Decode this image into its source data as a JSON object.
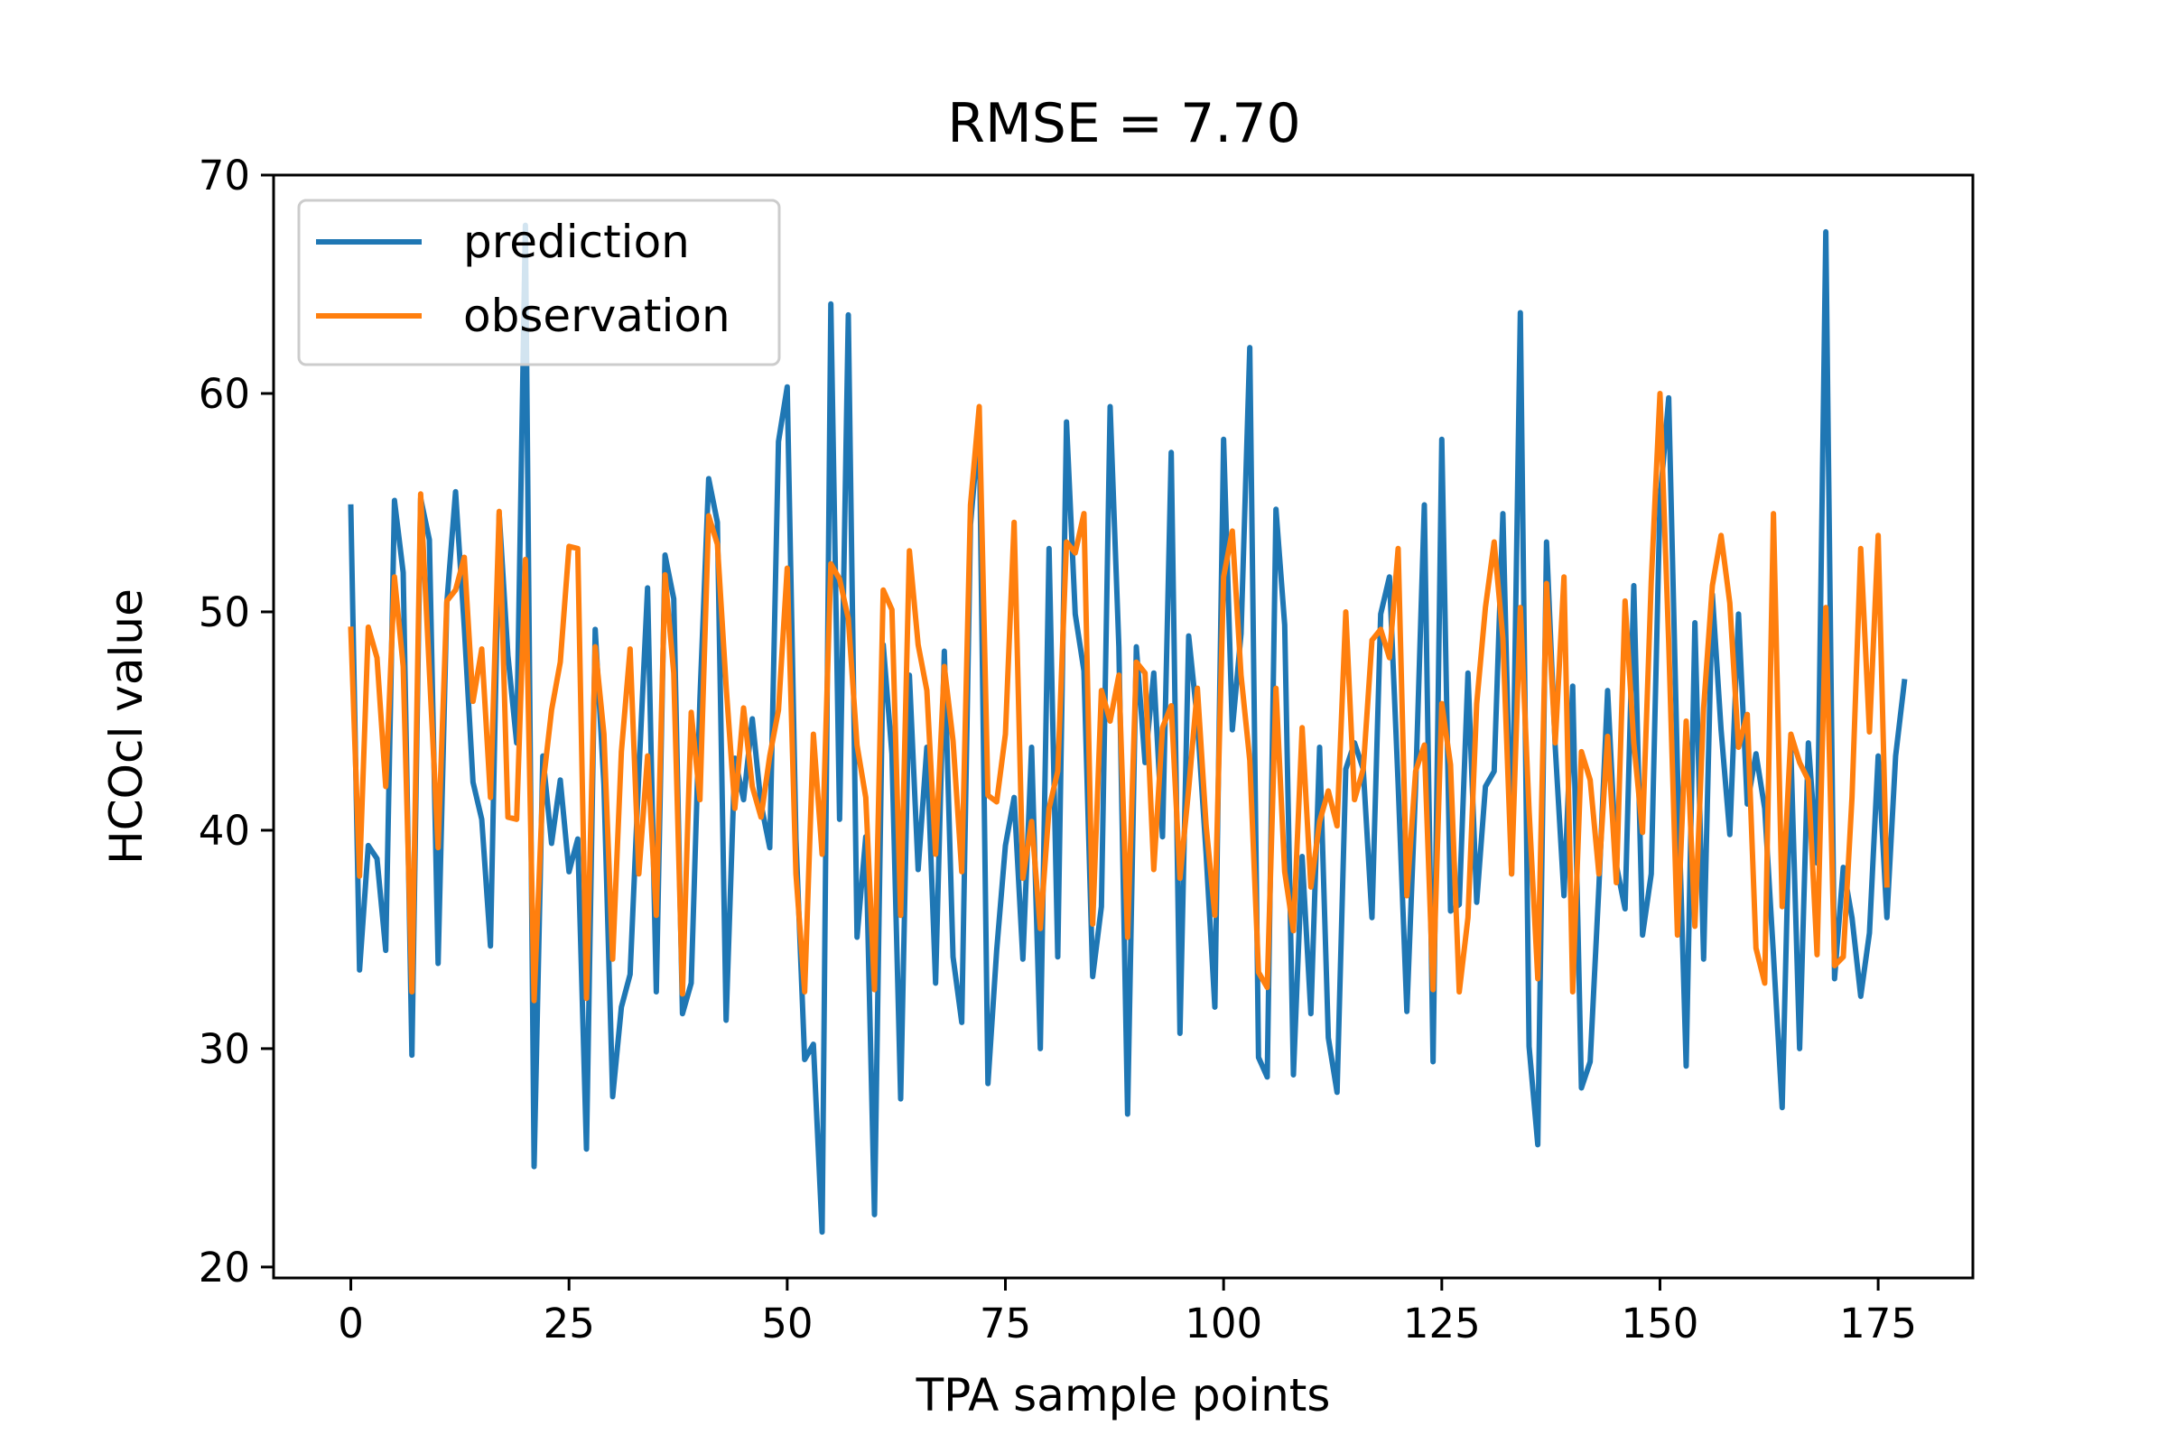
{
  "chart_data": {
    "type": "line",
    "title": "RMSE = 7.70",
    "xlabel": "TPA sample points",
    "ylabel": "HCOcl value",
    "xlim": [
      -8.85,
      185.85
    ],
    "ylim": [
      19.5,
      70.0
    ],
    "xticks": [
      0,
      25,
      50,
      75,
      100,
      125,
      150,
      175
    ],
    "yticks": [
      20,
      30,
      40,
      50,
      60,
      70
    ],
    "grid": false,
    "legend_position": "top-left",
    "series": [
      {
        "name": "prediction",
        "color": "#1f77b4",
        "values": [
          54.8,
          33.6,
          39.3,
          38.7,
          34.5,
          55.1,
          51.8,
          29.7,
          55.2,
          53.3,
          33.9,
          50.4,
          55.5,
          49.3,
          42.2,
          40.5,
          34.7,
          54.5,
          48.0,
          44.0,
          67.7,
          24.6,
          43.4,
          39.4,
          42.3,
          38.1,
          39.6,
          25.4,
          49.2,
          42.1,
          27.8,
          31.9,
          33.4,
          42.6,
          51.1,
          32.6,
          52.6,
          50.6,
          31.6,
          33.0,
          46.0,
          56.1,
          54.1,
          31.3,
          43.3,
          41.4,
          45.1,
          41.2,
          39.2,
          57.8,
          60.3,
          39.6,
          29.5,
          30.2,
          21.6,
          64.1,
          40.5,
          63.6,
          35.1,
          39.7,
          22.4,
          48.5,
          43.5,
          27.7,
          47.1,
          38.2,
          43.8,
          33.0,
          48.2,
          34.2,
          31.2,
          54.0,
          58.6,
          28.4,
          34.5,
          39.3,
          41.5,
          34.1,
          43.8,
          30.0,
          52.9,
          34.2,
          58.7,
          49.9,
          47.3,
          33.3,
          36.5,
          59.4,
          48.4,
          27.0,
          48.4,
          43.1,
          47.2,
          39.7,
          57.3,
          30.7,
          48.9,
          45.0,
          38.9,
          31.9,
          57.9,
          44.6,
          49.0,
          62.1,
          29.6,
          28.7,
          54.7,
          49.4,
          28.8,
          38.8,
          31.6,
          43.8,
          30.5,
          28.0,
          42.8,
          44.0,
          42.8,
          36.0,
          49.9,
          51.6,
          42.1,
          31.7,
          42.0,
          54.9,
          29.4,
          57.9,
          36.3,
          36.6,
          47.2,
          36.7,
          42.0,
          42.7,
          54.5,
          38.0,
          63.7,
          30.1,
          25.6,
          53.2,
          43.8,
          37.0,
          46.6,
          28.2,
          29.4,
          37.4,
          46.4,
          38.4,
          36.4,
          51.2,
          35.2,
          38.0,
          55.1,
          59.8,
          42.8,
          29.2,
          49.5,
          34.1,
          50.8,
          44.6,
          39.8,
          49.9,
          41.2,
          43.5,
          41.0,
          34.3,
          27.3,
          43.6,
          30.0,
          44.0,
          38.5,
          67.4,
          33.2,
          38.3,
          36.0,
          32.4,
          35.3,
          43.4,
          36.0,
          43.4,
          46.8
        ]
      },
      {
        "name": "observation",
        "color": "#ff7f0e",
        "values": [
          49.2,
          37.9,
          49.3,
          47.9,
          42.0,
          51.6,
          47.5,
          32.6,
          55.4,
          47.3,
          39.2,
          50.5,
          51.0,
          52.5,
          45.9,
          48.3,
          41.5,
          54.6,
          40.6,
          40.5,
          52.4,
          32.2,
          42.0,
          45.5,
          47.7,
          53.0,
          52.9,
          32.3,
          48.4,
          44.4,
          34.1,
          43.6,
          48.3,
          38.0,
          43.4,
          36.1,
          51.7,
          47.2,
          32.5,
          45.4,
          41.4,
          54.4,
          53.1,
          46.6,
          41.0,
          45.6,
          42.0,
          40.6,
          43.4,
          45.5,
          52.0,
          38.0,
          32.6,
          44.4,
          38.9,
          52.2,
          51.5,
          49.7,
          43.9,
          41.5,
          32.7,
          51.0,
          50.1,
          36.1,
          52.8,
          48.5,
          46.4,
          38.9,
          47.5,
          44.1,
          38.1,
          54.9,
          59.4,
          41.6,
          41.3,
          44.4,
          54.1,
          37.8,
          40.4,
          35.5,
          41.0,
          42.7,
          53.2,
          52.7,
          54.5,
          35.7,
          46.4,
          45.0,
          47.1,
          35.1,
          47.7,
          47.2,
          38.2,
          44.7,
          45.7,
          37.8,
          41.9,
          46.5,
          40.2,
          36.1,
          51.6,
          53.7,
          47.1,
          43.2,
          33.5,
          32.8,
          46.5,
          38.1,
          35.4,
          44.7,
          37.4,
          40.4,
          41.8,
          40.2,
          50.0,
          41.4,
          42.8,
          48.7,
          49.2,
          47.9,
          52.9,
          37.0,
          42.7,
          43.9,
          32.7,
          45.8,
          43.0,
          32.6,
          36.0,
          45.8,
          50.2,
          53.2,
          48.8,
          38.0,
          50.2,
          40.9,
          33.2,
          51.3,
          44.0,
          51.6,
          32.6,
          43.6,
          42.3,
          38.0,
          44.3,
          37.6,
          50.5,
          44.0,
          39.9,
          51.4,
          60.0,
          48.6,
          35.2,
          45.0,
          35.6,
          45.6,
          51.2,
          53.5,
          50.4,
          43.8,
          45.3,
          34.6,
          33.0,
          54.5,
          36.5,
          44.4,
          43.1,
          42.3,
          34.3,
          50.2,
          33.8,
          34.2,
          41.5,
          52.9,
          44.5,
          53.5,
          37.5
        ]
      }
    ]
  }
}
